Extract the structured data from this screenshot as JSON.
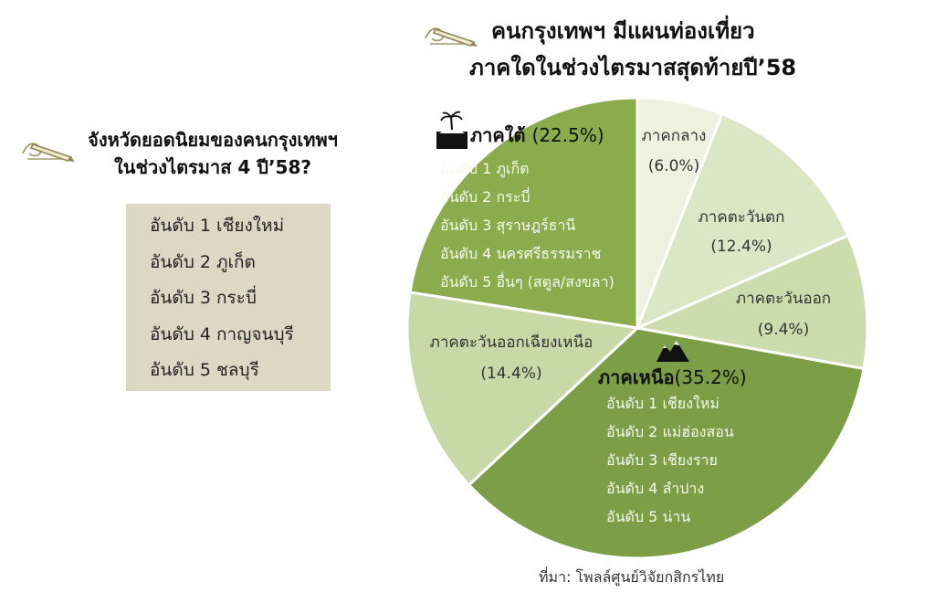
{
  "left_panel": {
    "title_line1": "จังหวัดยอดนิยมของคนกรุงเทพฯ",
    "title_line2": "ในช่วงไตรมาส 4 ปี’58?",
    "ranks": [
      "อันดับ 1 เชียงใหม่",
      "อันดับ 2 ภูเก็ต",
      "อันดับ 3 กระบี่",
      "อันดับ 4 กาญจนบุรี",
      "อันดับ 5 ชลบุรี"
    ]
  },
  "main_title": {
    "line1": "คนกรุงเทพฯ มีแผนท่องเที่ยว",
    "line2": "ภาคใดในช่วงไตรมาสสุดท้ายปี’58"
  },
  "source": "ที่มา: โพลล์ศูนย์วิจัยกสิกรไทย",
  "icons": {
    "title": "pencil-icon",
    "south": "island-icon",
    "north": "mountain-icon"
  },
  "colors": {
    "south": "#8aac4c",
    "central": "#eef1e0",
    "west": "#dbe6c5",
    "east": "#cbdcad",
    "north": "#7c9e47",
    "northeast": "#c6d9a7",
    "box": "#ddd8c4"
  },
  "chart_data": {
    "type": "pie",
    "title": "คนกรุงเทพฯ มีแผนท่องเที่ยว ภาคใดในช่วงไตรมาสสุดท้ายปี’58",
    "slices": [
      {
        "key": "south",
        "label": "ภาคใต้",
        "value": 22.5,
        "value_label": "(22.5%)",
        "color": "#8aac4c",
        "highlight": true,
        "ranks": [
          "อันดับ 1 ภูเก็ต",
          "อันดับ 2 กระบี่",
          "อันดับ 3 สุราษฎร์ธานี",
          "อันดับ 4 นครศรีธรรมราช",
          "อันดับ 5 อื่นๆ (สตูล/สงขลา)"
        ]
      },
      {
        "key": "central",
        "label": "ภาคกลาง",
        "value": 6.0,
        "value_label": "(6.0%)",
        "color": "#eef1e0",
        "highlight": false,
        "ranks": []
      },
      {
        "key": "west",
        "label": "ภาคตะวันตก",
        "value": 12.4,
        "value_label": "(12.4%)",
        "color": "#dbe6c5",
        "highlight": false,
        "ranks": []
      },
      {
        "key": "east",
        "label": "ภาคตะวันออก",
        "value": 9.4,
        "value_label": "(9.4%)",
        "color": "#cbdcad",
        "highlight": false,
        "ranks": []
      },
      {
        "key": "north",
        "label": "ภาคเหนือ",
        "value": 35.2,
        "value_label": "(35.2%)",
        "color": "#7c9e47",
        "highlight": true,
        "ranks": [
          "อันดับ 1 เชียงใหม่",
          "อันดับ 2 แม่ฮ่องสอน",
          "อันดับ 3 เชียงราย",
          "อันดับ 4 ลำปาง",
          "อันดับ 5 น่าน"
        ]
      },
      {
        "key": "northeast",
        "label": "ภาคตะวันออกเฉียงเหนือ",
        "value": 14.4,
        "value_label": "(14.4%)",
        "color": "#c6d9a7",
        "highlight": false,
        "ranks": []
      }
    ]
  }
}
